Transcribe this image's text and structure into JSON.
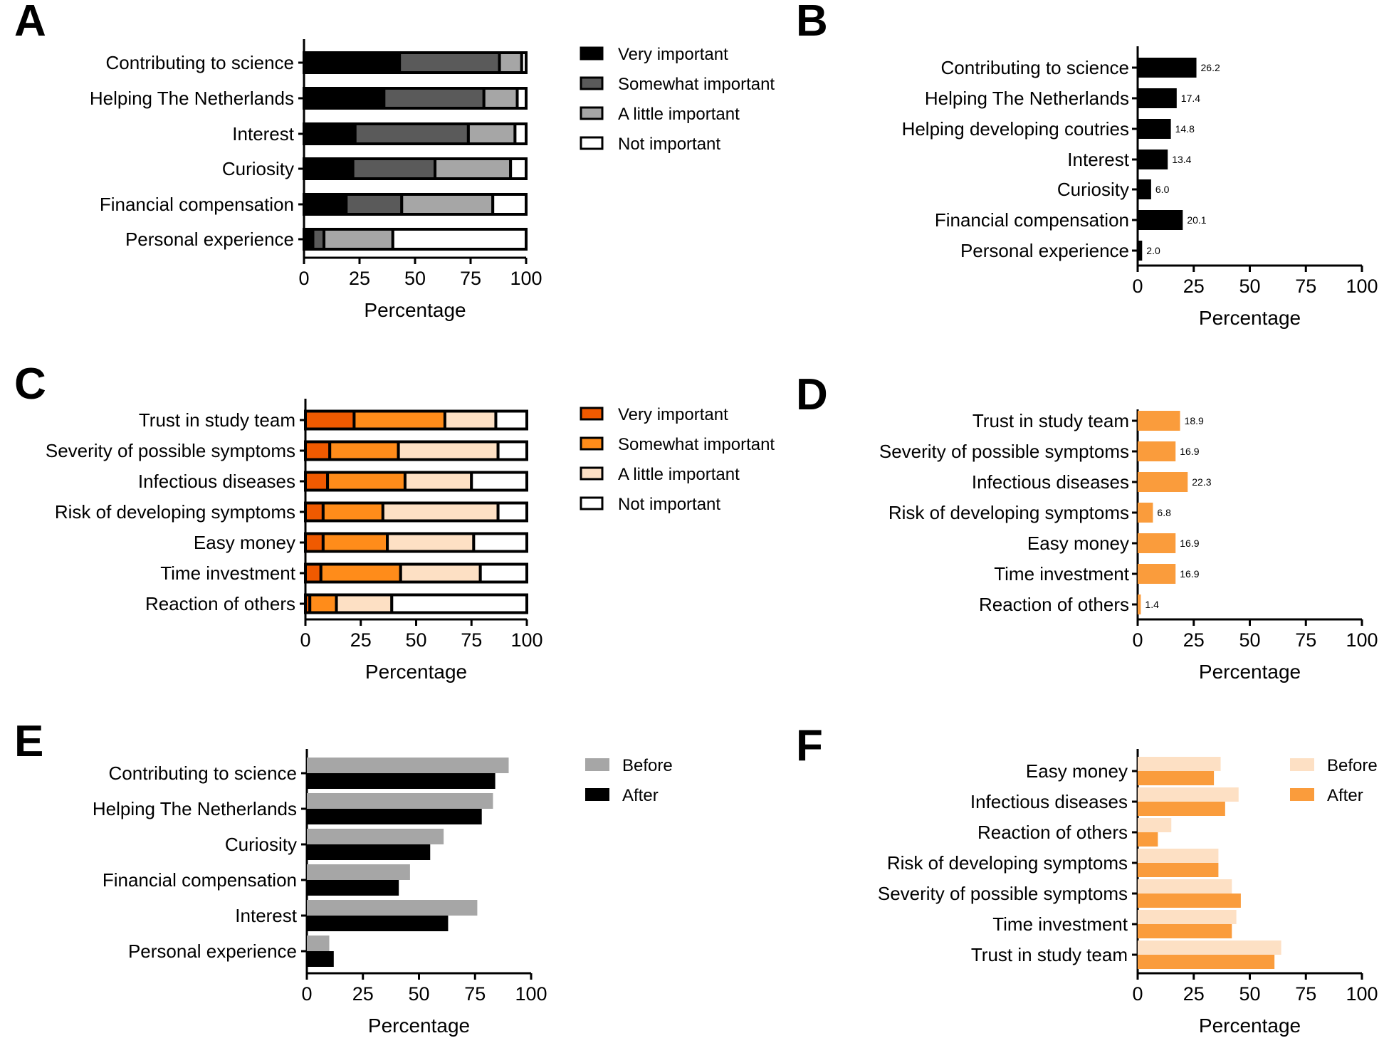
{
  "figure": {
    "panels": {
      "A": "A",
      "B": "B",
      "C": "C",
      "D": "D",
      "E": "E",
      "F": "F"
    },
    "colors": {
      "A_segments": [
        "#000000",
        "#5a5a5a",
        "#a6a6a6",
        "#ffffff"
      ],
      "C_segments": [
        "#f05a00",
        "#ff8c1a",
        "#fde0c4",
        "#ffffff"
      ],
      "B_bar": "#000000",
      "D_bar": "#fa9c3c",
      "E_before": "#a6a6a6",
      "E_after": "#000000",
      "F_before": "#fde0c4",
      "F_after": "#fa9c3c"
    }
  },
  "chart_data": [
    {
      "id": "A",
      "type": "bar",
      "stacked": true,
      "orientation": "horizontal",
      "title": "",
      "xlabel": "Percentage",
      "xlim": [
        0,
        100
      ],
      "xticks": [
        "0",
        "25",
        "50",
        "75",
        "100"
      ],
      "categories": [
        "Contributing to science",
        "Helping The Netherlands",
        "Interest",
        "Curiosity",
        "Financial compensation",
        "Personal experience"
      ],
      "series": [
        {
          "name": "Very important",
          "values": [
            43,
            36,
            23,
            22,
            19,
            4
          ]
        },
        {
          "name": "Somewhat important",
          "values": [
            45,
            45,
            51,
            37,
            25,
            5
          ]
        },
        {
          "name": "A little important",
          "values": [
            10,
            15,
            21,
            34,
            41,
            31
          ]
        },
        {
          "name": "Not important",
          "values": [
            2,
            4,
            5,
            7,
            15,
            60
          ]
        }
      ],
      "legend": "right"
    },
    {
      "id": "B",
      "type": "bar",
      "orientation": "horizontal",
      "title": "",
      "xlabel": "Percentage",
      "xlim": [
        0,
        100
      ],
      "xticks": [
        "0",
        "25",
        "50",
        "75",
        "100"
      ],
      "categories": [
        "Contributing to science",
        "Helping The Netherlands",
        "Helping developing coutries",
        "Interest",
        "Curiosity",
        "Financial compensation",
        "Personal experience"
      ],
      "values": [
        26.2,
        17.4,
        14.8,
        13.4,
        6.0,
        20.1,
        2.0
      ],
      "value_labels": [
        "26.2",
        "17.4",
        "14.8",
        "13.4",
        "6.0",
        "20.1",
        "2.0"
      ]
    },
    {
      "id": "C",
      "type": "bar",
      "stacked": true,
      "orientation": "horizontal",
      "title": "",
      "xlabel": "Percentage",
      "xlim": [
        0,
        100
      ],
      "xticks": [
        "0",
        "25",
        "50",
        "75",
        "100"
      ],
      "categories": [
        "Trust in study team",
        "Severity of possible symptoms",
        "Infectious diseases",
        "Risk of developing symptoms",
        "Easy money",
        "Time investment",
        "Reaction of others"
      ],
      "series": [
        {
          "name": "Very important",
          "values": [
            22,
            11,
            10,
            8,
            8,
            7,
            2
          ]
        },
        {
          "name": "Somewhat important",
          "values": [
            41,
            31,
            35,
            27,
            29,
            36,
            12
          ]
        },
        {
          "name": "A little important",
          "values": [
            23,
            45,
            30,
            52,
            39,
            36,
            25
          ]
        },
        {
          "name": "Not important",
          "values": [
            14,
            13,
            25,
            13,
            24,
            21,
            61
          ]
        }
      ],
      "legend": "right"
    },
    {
      "id": "D",
      "type": "bar",
      "orientation": "horizontal",
      "title": "",
      "xlabel": "Percentage",
      "xlim": [
        0,
        100
      ],
      "xticks": [
        "0",
        "25",
        "50",
        "75",
        "100"
      ],
      "categories": [
        "Trust in study team",
        "Severity of possible symptoms",
        "Infectious diseases",
        "Risk of developing symptoms",
        "Easy money",
        "Time investment",
        "Reaction of others"
      ],
      "values": [
        18.9,
        16.9,
        22.3,
        6.8,
        16.9,
        16.9,
        1.4
      ],
      "value_labels": [
        "18.9",
        "16.9",
        "22.3",
        "6.8",
        "16.9",
        "16.9",
        "1.4"
      ]
    },
    {
      "id": "E",
      "type": "bar",
      "orientation": "horizontal",
      "title": "",
      "xlabel": "Percentage",
      "xlim": [
        0,
        100
      ],
      "xticks": [
        "0",
        "25",
        "50",
        "75",
        "100"
      ],
      "categories": [
        "Contributing to science",
        "Helping The Netherlands",
        "Curiosity",
        "Financial compensation",
        "Interest",
        "Personal experience"
      ],
      "series": [
        {
          "name": "Before",
          "values": [
            90,
            83,
            61,
            46,
            76,
            10
          ]
        },
        {
          "name": "After",
          "values": [
            84,
            78,
            55,
            41,
            63,
            12
          ]
        }
      ],
      "legend": "right"
    },
    {
      "id": "F",
      "type": "bar",
      "orientation": "horizontal",
      "title": "",
      "xlabel": "Percentage",
      "xlim": [
        0,
        100
      ],
      "xticks": [
        "0",
        "25",
        "50",
        "75",
        "100"
      ],
      "categories": [
        "Easy money",
        "Infectious diseases",
        "Reaction of others",
        "Risk of developing symptoms",
        "Severity of possible symptoms",
        "Time investment",
        "Trust in study team"
      ],
      "series": [
        {
          "name": "Before",
          "values": [
            37,
            45,
            15,
            36,
            42,
            44,
            64
          ]
        },
        {
          "name": "After",
          "values": [
            34,
            39,
            9,
            36,
            46,
            42,
            61
          ]
        }
      ],
      "legend": "top-right"
    }
  ]
}
